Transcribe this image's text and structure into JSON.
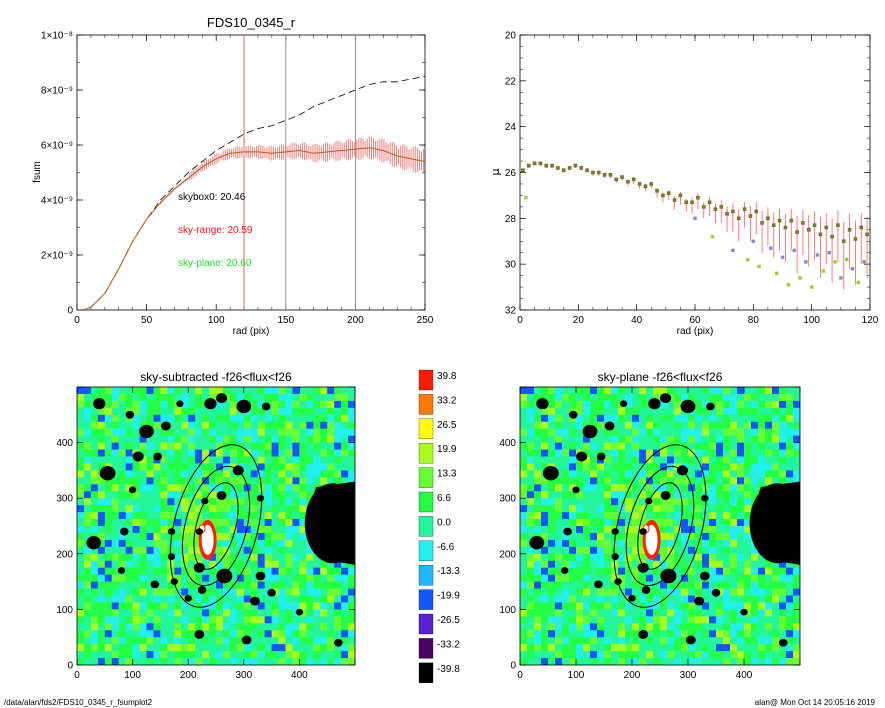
{
  "footer": {
    "path": "/data/alan/fds2/FDS10_0345_r_fsumplot2",
    "stamp": "alan@  Mon Oct 14 20:05:16 2019"
  },
  "colors": {
    "mean_curve": "#000000",
    "sky_range_curve": "#b85a1a",
    "sky_range_errorbars": "#f08080",
    "sky_range_text": "#e8141e",
    "sky_plane_text": "#22dd22",
    "vline_red": "#e05050",
    "vline_gray": "#888888"
  },
  "chart_data": [
    {
      "id": "fsum",
      "type": "line",
      "title": "FDS10_0345_r",
      "xlabel": "rad (pix)",
      "ylabel": "fsum",
      "xlim": [
        0,
        250
      ],
      "ylim": [
        0,
        1e-08
      ],
      "xticks": [
        "0",
        "50",
        "100",
        "150",
        "200",
        "250"
      ],
      "yticks": [
        "0",
        "2×10⁻⁹",
        "4×10⁻⁹",
        "6×10⁻⁹",
        "8×10⁻⁹",
        "1×10⁻⁸"
      ],
      "vlines": [
        {
          "x": 120,
          "color": "red"
        },
        {
          "x": 150,
          "color": "gray"
        },
        {
          "x": 200,
          "color": "gray"
        }
      ],
      "annotations": [
        "skybox0: 20.46",
        "sky-range: 20.59",
        "sky-plane: 20.60"
      ],
      "series": [
        {
          "style": "dashed",
          "x": [
            0,
            5,
            10,
            20,
            30,
            40,
            50,
            60,
            70,
            80,
            90,
            100,
            110,
            120,
            130,
            140,
            150,
            160,
            170,
            180,
            190,
            200,
            210,
            220,
            230,
            240,
            250
          ],
          "y": [
            0,
            1e-11,
            1e-10,
            6e-10,
            1.5e-09,
            2.5e-09,
            3.3e-09,
            4e-09,
            4.5e-09,
            5e-09,
            5.4e-09,
            5.8e-09,
            6.1e-09,
            6.4e-09,
            6.6e-09,
            6.7e-09,
            6.9e-09,
            7.1e-09,
            7.4e-09,
            7.6e-09,
            7.8e-09,
            8e-09,
            8.2e-09,
            8.3e-09,
            8.3e-09,
            8.4e-09,
            8.5e-09
          ]
        },
        {
          "style": "solid",
          "errorbars": true,
          "x": [
            0,
            5,
            10,
            20,
            30,
            40,
            50,
            60,
            70,
            80,
            90,
            100,
            110,
            120,
            130,
            140,
            150,
            160,
            170,
            180,
            190,
            200,
            210,
            220,
            230,
            240,
            250
          ],
          "y": [
            0,
            1e-11,
            1e-10,
            6e-10,
            1.5e-09,
            2.5e-09,
            3.3e-09,
            3.9e-09,
            4.4e-09,
            4.8e-09,
            5.2e-09,
            5.5e-09,
            5.7e-09,
            5.75e-09,
            5.75e-09,
            5.7e-09,
            5.75e-09,
            5.8e-09,
            5.7e-09,
            5.75e-09,
            5.8e-09,
            5.85e-09,
            5.9e-09,
            5.8e-09,
            5.6e-09,
            5.5e-09,
            5.4e-09
          ]
        }
      ]
    },
    {
      "id": "mu",
      "type": "scatter",
      "xlabel": "rad (pix)",
      "ylabel": "μ",
      "xlim": [
        0,
        120
      ],
      "ylim": [
        32,
        20
      ],
      "xticks": [
        "0",
        "20",
        "40",
        "60",
        "80",
        "100",
        "120"
      ],
      "yticks": [
        "32",
        "30",
        "28",
        "26",
        "24",
        "22",
        "20"
      ],
      "series": [
        {
          "x": [
            1,
            3,
            5,
            7,
            9,
            11,
            13,
            15,
            17,
            19,
            21,
            23,
            25,
            27,
            29,
            31,
            33,
            35,
            37,
            39,
            41,
            43,
            45,
            47,
            49,
            51,
            53,
            55,
            57,
            59,
            61,
            63,
            65,
            67,
            69,
            71,
            73,
            75,
            77,
            79,
            81,
            83,
            85,
            87,
            89,
            91,
            93,
            95,
            97,
            99,
            101,
            103,
            105,
            107,
            109,
            111,
            113,
            115,
            117,
            119
          ],
          "y": [
            25.9,
            25.7,
            25.6,
            25.6,
            25.7,
            25.7,
            25.8,
            25.9,
            25.8,
            25.7,
            25.8,
            25.9,
            26.0,
            26.0,
            26.1,
            26.1,
            26.3,
            26.2,
            26.4,
            26.3,
            26.5,
            26.6,
            26.5,
            26.8,
            27.0,
            26.9,
            27.2,
            27.0,
            27.3,
            27.3,
            27.1,
            27.5,
            27.3,
            27.6,
            27.5,
            27.8,
            27.7,
            28.0,
            27.6,
            27.9,
            27.7,
            28.2,
            28.0,
            28.3,
            28.1,
            28.4,
            28.1,
            28.6,
            28.2,
            28.5,
            28.3,
            28.7,
            28.4,
            28.8,
            28.3,
            29.0,
            28.5,
            28.9,
            28.4,
            28.7
          ],
          "err": [
            0.1,
            0.1,
            0.1,
            0.1,
            0.1,
            0.1,
            0.1,
            0.1,
            0.1,
            0.1,
            0.1,
            0.1,
            0.15,
            0.15,
            0.15,
            0.15,
            0.15,
            0.15,
            0.2,
            0.2,
            0.2,
            0.2,
            0.2,
            0.3,
            0.3,
            0.3,
            0.4,
            0.4,
            0.4,
            0.5,
            0.5,
            0.5,
            0.6,
            0.6,
            0.7,
            0.8,
            0.9,
            1.0,
            0.8,
            1.1,
            1.0,
            1.3,
            1.2,
            1.4,
            1.3,
            1.5,
            1.3,
            1.8,
            1.4,
            1.6,
            1.5,
            1.9,
            1.6,
            2.0,
            1.6,
            2.1,
            1.7,
            2.0,
            1.6,
            1.9
          ]
        },
        {
          "marker": "outlier",
          "x": [
            2,
            60,
            66,
            73,
            78,
            80,
            82,
            86,
            88,
            90,
            92,
            94,
            96,
            98,
            100,
            102,
            104,
            106,
            108,
            110,
            112,
            114,
            116,
            118
          ],
          "y": [
            27.1,
            28.0,
            28.8,
            29.4,
            29.8,
            29.0,
            30.1,
            29.3,
            30.4,
            29.7,
            30.9,
            29.4,
            30.6,
            29.9,
            31.0,
            29.6,
            30.3,
            29.5,
            29.9,
            30.6,
            29.8,
            30.2,
            30.8,
            29.9
          ]
        }
      ]
    },
    {
      "id": "img1",
      "type": "heatmap",
      "title": "sky-subtracted -f26<flux<f26",
      "xlim": [
        0,
        500
      ],
      "ylim": [
        0,
        500
      ],
      "xticks": [
        "0",
        "100",
        "200",
        "300",
        "400"
      ],
      "yticks": [
        "0",
        "100",
        "200",
        "300",
        "400"
      ],
      "ellipse": {
        "cx": 250,
        "cy": 250,
        "a": [
          80,
          110,
          150
        ],
        "b": [
          35,
          55,
          75
        ],
        "angle_deg": 15
      }
    },
    {
      "id": "img2",
      "type": "heatmap",
      "title": "sky-plane -f26<flux<f26",
      "xlim": [
        0,
        500
      ],
      "ylim": [
        0,
        500
      ],
      "xticks": [
        "0",
        "100",
        "200",
        "300",
        "400"
      ],
      "yticks": [
        "0",
        "100",
        "200",
        "300",
        "400"
      ],
      "ellipse": {
        "cx": 250,
        "cy": 250,
        "a": [
          80,
          110,
          150
        ],
        "b": [
          35,
          55,
          75
        ],
        "angle_deg": 15
      }
    },
    {
      "id": "colorbar",
      "type": "table",
      "levels": [
        "39.8",
        "33.2",
        "26.5",
        "19.9",
        "13.3",
        "6.6",
        "0.0",
        "-6.6",
        "-13.3",
        "-19.9",
        "-26.5",
        "-33.2",
        "-39.8"
      ],
      "colors": [
        "#ff1c00",
        "#ff7a00",
        "#ffff00",
        "#a8ff1a",
        "#66ff33",
        "#22ff44",
        "#22f59a",
        "#22f0f0",
        "#22b6ff",
        "#1457ff",
        "#5a1fd6",
        "#4a0066",
        "#000000"
      ]
    }
  ]
}
